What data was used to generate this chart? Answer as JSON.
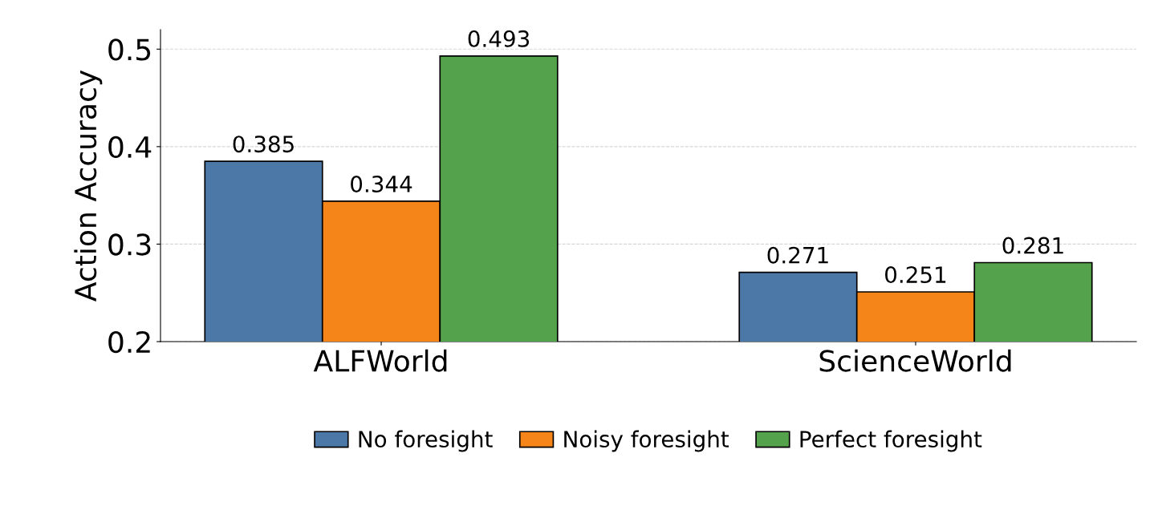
{
  "chart_data": {
    "type": "bar",
    "ylabel": "Action Accuracy",
    "categories": [
      "ALFWorld",
      "ScienceWorld"
    ],
    "series": [
      {
        "name": "No foresight",
        "color": "#4c78a8",
        "values": [
          0.385,
          0.271
        ]
      },
      {
        "name": "Noisy foresight",
        "color": "#f58518",
        "values": [
          0.344,
          0.251
        ]
      },
      {
        "name": "Perfect foresight",
        "color": "#54a24b",
        "values": [
          0.493,
          0.281
        ]
      }
    ],
    "ylim": [
      0.2,
      0.52
    ],
    "yticks": [
      0.2,
      0.3,
      0.4,
      0.5
    ],
    "grid": "y",
    "legend": "bottom",
    "data_labels": true
  }
}
